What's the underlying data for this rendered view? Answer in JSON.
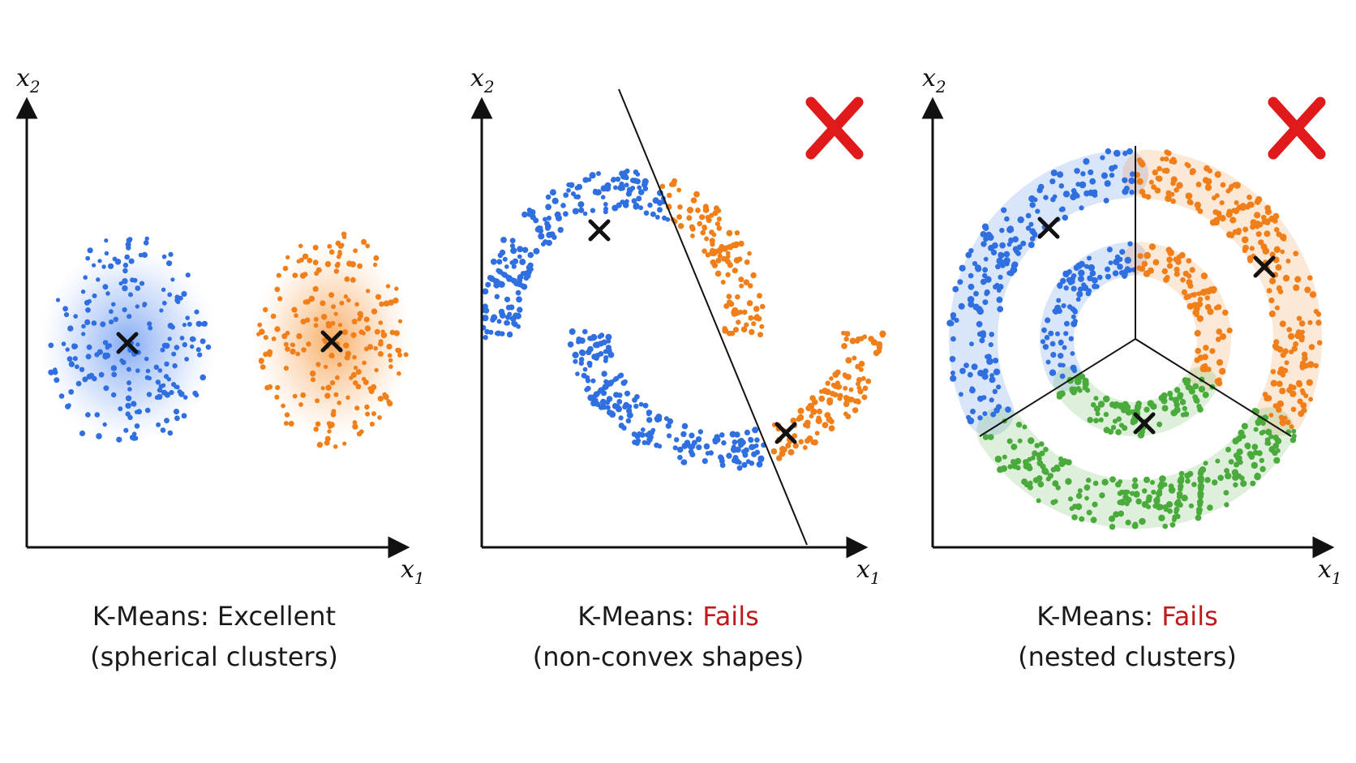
{
  "panels": [
    {
      "axis_x_label": "x",
      "axis_x_sub": "1",
      "axis_y_label": "x",
      "axis_y_sub": "2",
      "caption_prefix": "K-Means: ",
      "caption_verdict": "Excellent",
      "caption_detail": "(spherical clusters)",
      "verdict_status": "good",
      "cross_mark": false
    },
    {
      "axis_x_label": "x",
      "axis_x_sub": "1",
      "axis_y_label": "x",
      "axis_y_sub": "2",
      "caption_prefix": "K-Means: ",
      "caption_verdict": "Fails",
      "caption_detail": "(non-convex shapes)",
      "verdict_status": "bad",
      "cross_mark": true
    },
    {
      "axis_x_label": "x",
      "axis_x_sub": "1",
      "axis_y_label": "x",
      "axis_y_sub": "2",
      "caption_prefix": "K-Means: ",
      "caption_verdict": "Fails",
      "caption_detail": "(nested clusters)",
      "verdict_status": "bad",
      "cross_mark": true
    }
  ],
  "colors": {
    "cluster_blue": "#2f6fe0",
    "cluster_orange": "#f07f1a",
    "cluster_green": "#4aaa3c",
    "fail_red": "#e01a1a",
    "verdict_red": "#c0181b",
    "axis": "#111111"
  },
  "icons": {
    "centroid": "x-marker-icon",
    "fail": "red-cross-icon"
  }
}
